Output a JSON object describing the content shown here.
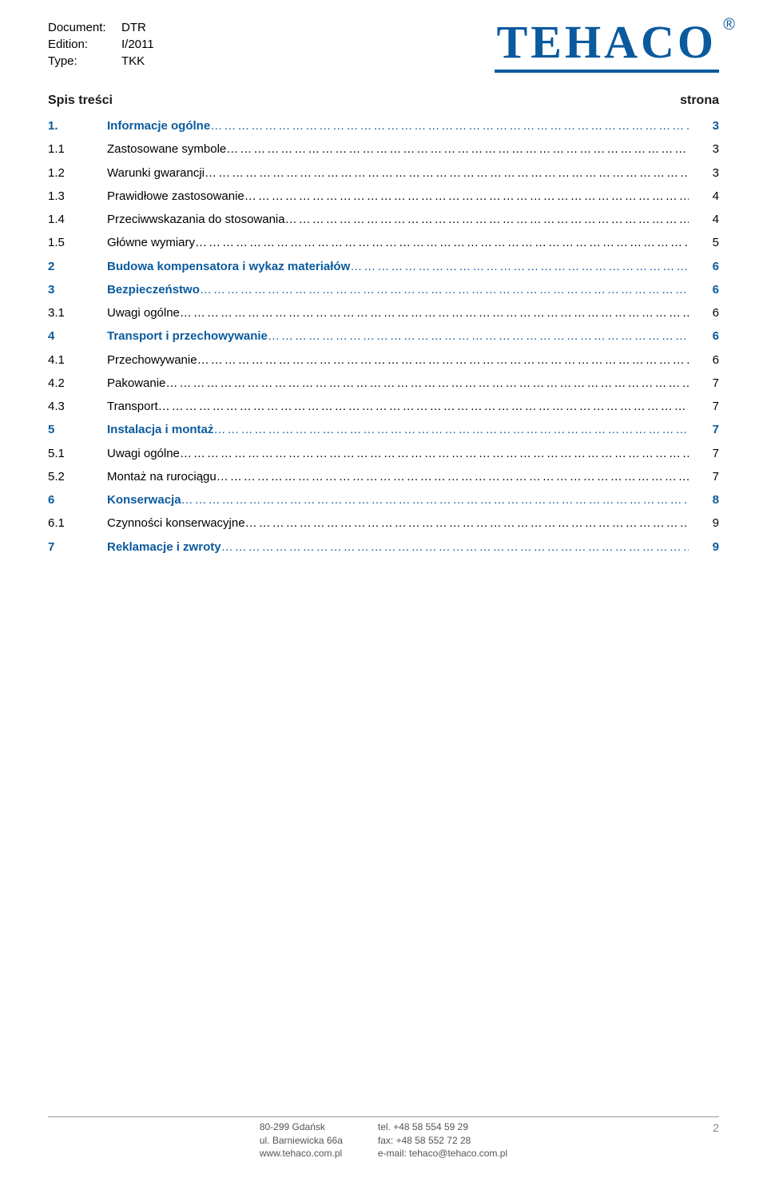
{
  "doc": {
    "document_label": "Document:",
    "document_value": "DTR",
    "edition_label": "Edition:",
    "edition_value": "I/2011",
    "type_label": "Type:",
    "type_value": "TKK"
  },
  "logo": {
    "text": "TEHACO",
    "registered": "®",
    "color": "#0a5a9e"
  },
  "toc_header": {
    "left": "Spis treści",
    "right": "strona"
  },
  "toc": [
    {
      "num": "1.",
      "title": "Informacje ogólne",
      "page": "3",
      "section": true
    },
    {
      "num": "1.1",
      "title": "Zastosowane symbole",
      "page": "3",
      "section": false
    },
    {
      "num": "1.2",
      "title": "Warunki gwarancji",
      "page": "3",
      "section": false
    },
    {
      "num": "1.3",
      "title": "Prawidłowe zastosowanie",
      "page": "4",
      "section": false
    },
    {
      "num": "1.4",
      "title": "Przeciwwskazania do stosowania",
      "page": "4",
      "section": false
    },
    {
      "num": "1.5",
      "title": "Główne wymiary",
      "page": "5",
      "section": false
    },
    {
      "num": "2",
      "title": "Budowa kompensatora i wykaz materiałów",
      "page": "6",
      "section": true
    },
    {
      "num": "3",
      "title": "Bezpieczeństwo",
      "page": "6",
      "section": true
    },
    {
      "num": "3.1",
      "title": "Uwagi ogólne",
      "page": "6",
      "section": false
    },
    {
      "num": "4",
      "title": "Transport i przechowywanie",
      "page": "6",
      "section": true
    },
    {
      "num": "4.1",
      "title": "Przechowywanie",
      "page": "6",
      "section": false
    },
    {
      "num": "4.2",
      "title": "Pakowanie",
      "page": "7",
      "section": false
    },
    {
      "num": "4.3",
      "title": "Transport",
      "page": "7",
      "section": false
    },
    {
      "num": "5",
      "title": "Instalacja i montaż",
      "page": "7",
      "section": true
    },
    {
      "num": "5.1",
      "title": "Uwagi ogólne",
      "page": "7",
      "section": false
    },
    {
      "num": "5.2",
      "title": "Montaż na rurociągu",
      "page": "7",
      "section": false
    },
    {
      "num": "6",
      "title": "Konserwacja",
      "page": "8",
      "section": true
    },
    {
      "num": "6.1",
      "title": "Czynności konserwacyjne",
      "page": "9",
      "section": false
    },
    {
      "num": "7",
      "title": "Reklamacje i zwroty",
      "page": "9",
      "section": true
    }
  ],
  "leader": "…………………………………………………………………………………………………………………………………………………………………………………………………………………………………………",
  "footer": {
    "col1": [
      "80-299 Gdańsk",
      "ul. Barniewicka 66a",
      "www.tehaco.com.pl"
    ],
    "col2": [
      "tel. +48 58 554 59 29",
      "fax: +48 58 552 72 28",
      "e-mail: tehaco@tehaco.com.pl"
    ],
    "page_number": "2"
  }
}
